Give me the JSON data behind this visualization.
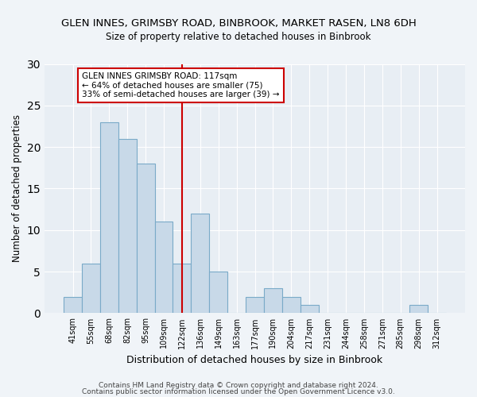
{
  "title": "GLEN INNES, GRIMSBY ROAD, BINBROOK, MARKET RASEN, LN8 6DH",
  "subtitle": "Size of property relative to detached houses in Binbrook",
  "xlabel": "Distribution of detached houses by size in Binbrook",
  "ylabel": "Number of detached properties",
  "bar_color": "#c8d9e8",
  "bar_edge_color": "#7aaac8",
  "bin_labels": [
    "41sqm",
    "55sqm",
    "68sqm",
    "82sqm",
    "95sqm",
    "109sqm",
    "122sqm",
    "136sqm",
    "149sqm",
    "163sqm",
    "177sqm",
    "190sqm",
    "204sqm",
    "217sqm",
    "231sqm",
    "244sqm",
    "258sqm",
    "271sqm",
    "285sqm",
    "298sqm",
    "312sqm"
  ],
  "bar_values": [
    2,
    6,
    23,
    21,
    18,
    11,
    6,
    12,
    5,
    0,
    2,
    3,
    2,
    1,
    0,
    0,
    0,
    0,
    0,
    1,
    0
  ],
  "vline_x": 6,
  "vline_color": "#cc0000",
  "annotation_title": "GLEN INNES GRIMSBY ROAD: 117sqm",
  "annotation_line1": "← 64% of detached houses are smaller (75)",
  "annotation_line2": "33% of semi-detached houses are larger (39) →",
  "annotation_box_color": "#ffffff",
  "annotation_box_edge": "#cc0000",
  "ylim": [
    0,
    30
  ],
  "yticks": [
    0,
    5,
    10,
    15,
    20,
    25,
    30
  ],
  "footer1": "Contains HM Land Registry data © Crown copyright and database right 2024.",
  "footer2": "Contains public sector information licensed under the Open Government Licence v3.0.",
  "bg_color": "#f0f4f8",
  "plot_bg_color": "#e8eef4"
}
